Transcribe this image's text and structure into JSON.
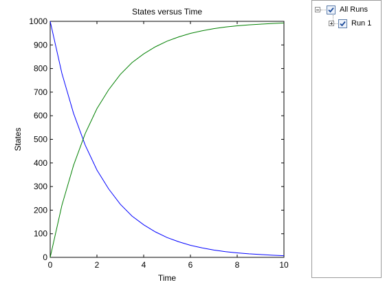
{
  "chart_data": {
    "type": "line",
    "title": "States versus Time",
    "xlabel": "Time",
    "ylabel": "States",
    "xlim": [
      0,
      10
    ],
    "ylim": [
      0,
      1000
    ],
    "xticks": [
      0,
      2,
      4,
      6,
      8,
      10
    ],
    "yticks": [
      0,
      100,
      200,
      300,
      400,
      500,
      600,
      700,
      800,
      900,
      1000
    ],
    "grid": false,
    "x": [
      0,
      0.5,
      1,
      1.5,
      2,
      2.5,
      3,
      3.5,
      4,
      4.5,
      5,
      5.5,
      6,
      6.5,
      7,
      7.5,
      8,
      8.5,
      9,
      9.5,
      10
    ],
    "series": [
      {
        "color": "#0000ff",
        "values": [
          1000,
          780,
          610,
          475,
          370,
          290,
          225,
          175,
          138,
          108,
          84,
          66,
          51,
          40,
          31,
          24,
          19,
          15,
          12,
          9,
          7
        ]
      },
      {
        "color": "#008000",
        "values": [
          0,
          220,
          390,
          525,
          630,
          710,
          775,
          825,
          862,
          892,
          916,
          934,
          949,
          960,
          969,
          976,
          981,
          985,
          988,
          991,
          993
        ]
      }
    ]
  },
  "legend": {
    "root_label": "All Runs",
    "child_label": "Run 1"
  }
}
